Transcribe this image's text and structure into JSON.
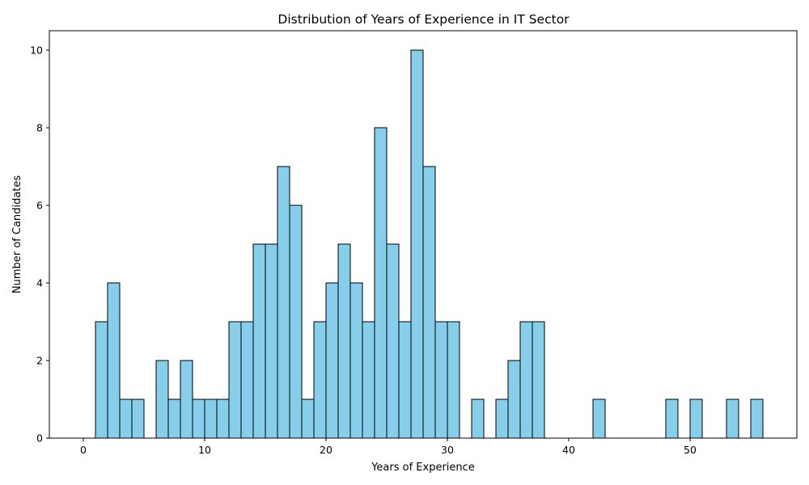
{
  "chart_data": {
    "type": "bar",
    "title": "Distribution of Years of Experience in IT Sector",
    "xlabel": "Years of Experience",
    "ylabel": "Number of Candidates",
    "xlim": [
      -2.8,
      58.8
    ],
    "ylim": [
      0,
      10.5
    ],
    "bin_width": 1,
    "xticks": [
      0,
      10,
      20,
      30,
      40,
      50
    ],
    "yticks": [
      0,
      2,
      4,
      6,
      8,
      10
    ],
    "bar_color": "#87ceeb",
    "edge_color": "#000000",
    "bins": [
      {
        "start": 0,
        "count": 0
      },
      {
        "start": 1,
        "count": 3
      },
      {
        "start": 2,
        "count": 4
      },
      {
        "start": 3,
        "count": 1
      },
      {
        "start": 4,
        "count": 1
      },
      {
        "start": 5,
        "count": 0
      },
      {
        "start": 6,
        "count": 2
      },
      {
        "start": 7,
        "count": 1
      },
      {
        "start": 8,
        "count": 2
      },
      {
        "start": 9,
        "count": 1
      },
      {
        "start": 10,
        "count": 1
      },
      {
        "start": 11,
        "count": 1
      },
      {
        "start": 12,
        "count": 3
      },
      {
        "start": 13,
        "count": 3
      },
      {
        "start": 14,
        "count": 5
      },
      {
        "start": 15,
        "count": 5
      },
      {
        "start": 16,
        "count": 7
      },
      {
        "start": 17,
        "count": 6
      },
      {
        "start": 18,
        "count": 1
      },
      {
        "start": 19,
        "count": 3
      },
      {
        "start": 20,
        "count": 4
      },
      {
        "start": 21,
        "count": 5
      },
      {
        "start": 22,
        "count": 4
      },
      {
        "start": 23,
        "count": 3
      },
      {
        "start": 24,
        "count": 8
      },
      {
        "start": 25,
        "count": 5
      },
      {
        "start": 26,
        "count": 3
      },
      {
        "start": 27,
        "count": 10
      },
      {
        "start": 28,
        "count": 7
      },
      {
        "start": 29,
        "count": 3
      },
      {
        "start": 30,
        "count": 3
      },
      {
        "start": 31,
        "count": 0
      },
      {
        "start": 32,
        "count": 1
      },
      {
        "start": 33,
        "count": 0
      },
      {
        "start": 34,
        "count": 1
      },
      {
        "start": 35,
        "count": 2
      },
      {
        "start": 36,
        "count": 3
      },
      {
        "start": 37,
        "count": 3
      },
      {
        "start": 38,
        "count": 0
      },
      {
        "start": 39,
        "count": 0
      },
      {
        "start": 40,
        "count": 0
      },
      {
        "start": 41,
        "count": 0
      },
      {
        "start": 42,
        "count": 1
      },
      {
        "start": 43,
        "count": 0
      },
      {
        "start": 44,
        "count": 0
      },
      {
        "start": 45,
        "count": 0
      },
      {
        "start": 46,
        "count": 0
      },
      {
        "start": 47,
        "count": 0
      },
      {
        "start": 48,
        "count": 1
      },
      {
        "start": 49,
        "count": 0
      },
      {
        "start": 50,
        "count": 1
      },
      {
        "start": 51,
        "count": 0
      },
      {
        "start": 52,
        "count": 0
      },
      {
        "start": 53,
        "count": 1
      },
      {
        "start": 54,
        "count": 0
      },
      {
        "start": 55,
        "count": 1
      }
    ]
  }
}
